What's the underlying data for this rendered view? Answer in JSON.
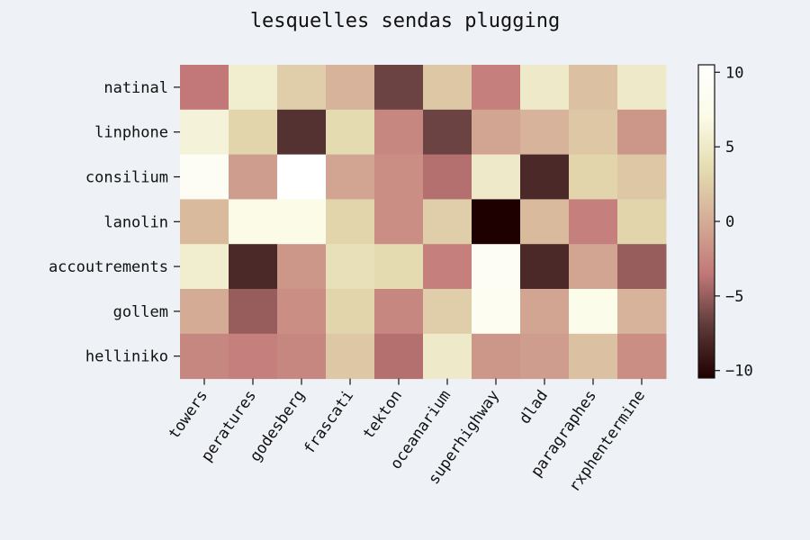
{
  "chart_data": {
    "type": "heatmap",
    "title": "lesquelles sendas plugging",
    "xlabel": "",
    "ylabel": "",
    "x_categories": [
      "towers",
      "peratures",
      "godesberg",
      "frascati",
      "tekton",
      "oceanarium",
      "superhighway",
      "dlad",
      "paragraphes",
      "rxphentermine"
    ],
    "y_categories": [
      "natinal",
      "linphone",
      "consilium",
      "lanolin",
      "accoutrements",
      "gollem",
      "helliniko"
    ],
    "values": [
      [
        -3.5,
        5.5,
        2.5,
        0.5,
        -6.5,
        2.0,
        -3.0,
        5.0,
        1.5,
        5.0
      ],
      [
        6.0,
        3.0,
        -7.5,
        3.5,
        -2.5,
        -6.5,
        -0.5,
        0.5,
        2.0,
        -1.5
      ],
      [
        9.0,
        -1.0,
        10.5,
        -0.5,
        -2.0,
        -4.0,
        5.0,
        -8.0,
        3.0,
        2.0
      ],
      [
        1.0,
        7.0,
        7.0,
        3.0,
        -2.0,
        2.5,
        -10.5,
        1.0,
        -3.0,
        3.0
      ],
      [
        5.5,
        -8.0,
        -1.5,
        4.0,
        3.5,
        -3.0,
        9.0,
        -8.0,
        -0.5,
        -5.0
      ],
      [
        0.0,
        -5.0,
        -2.0,
        3.0,
        -2.5,
        2.5,
        8.5,
        -0.5,
        7.5,
        0.5
      ],
      [
        -2.5,
        -3.0,
        -2.5,
        2.0,
        -4.0,
        5.0,
        -1.5,
        -1.0,
        1.5,
        -2.0
      ]
    ],
    "colorbar": {
      "min": -10.5,
      "max": 10.5,
      "ticks": [
        -10,
        -5,
        0,
        5,
        10
      ]
    },
    "colormap": [
      "#1f0000",
      "#5e3a3a",
      "#c27878",
      "#d4ac96",
      "#e4dcb0",
      "#fbfbe8",
      "#ffffff"
    ]
  }
}
